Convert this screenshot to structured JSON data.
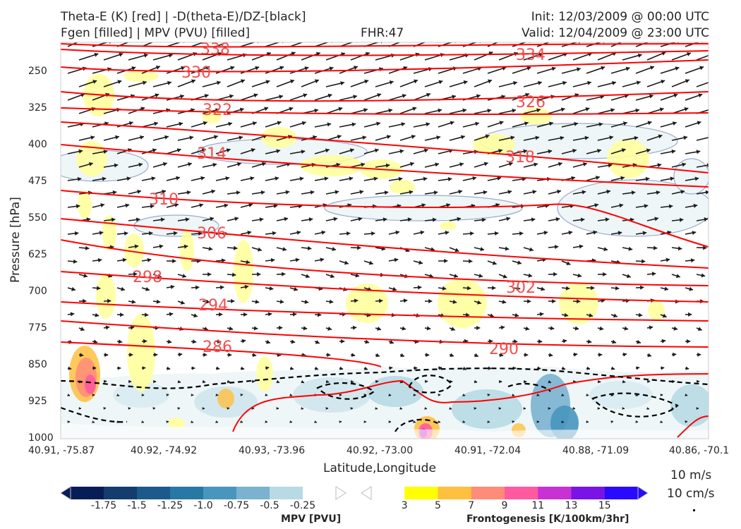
{
  "header": {
    "line1_left": "Theta-E (K) [red] | -D(theta-E)/DZ-[black]",
    "line2_left": "Fgen [filled] | MPV (PVU) [filled]",
    "fhr": "FHR:47",
    "init": "Init: 12/03/2009 @ 00:00 UTC",
    "valid": "Valid: 12/04/2009 @ 23:00 UTC"
  },
  "chart_data": {
    "type": "contour",
    "xlabel": "Latitude,Longitude",
    "ylabel": "Pressure [hPa]",
    "x_ticks": [
      "40.91, -75.87",
      "40.92, -74.92",
      "40.93, -73.96",
      "40.92, -73.00",
      "40.91, -72.04",
      "40.88, -71.09",
      "40.86, -70.1"
    ],
    "y_ticks": [
      250,
      325,
      400,
      475,
      550,
      625,
      700,
      775,
      850,
      925,
      1000
    ],
    "ylim": [
      1000,
      190
    ],
    "theta_e_labels": [
      338,
      334,
      330,
      326,
      322,
      318,
      314,
      310,
      306,
      302,
      298,
      294,
      290,
      286
    ],
    "colors": {
      "theta_e": "#ff0000",
      "label": "#f05050",
      "arrow": "#1a1a1a",
      "mpv_outline": "#9aaccc",
      "fgen_low": "#ffff99"
    },
    "mpv_colorbar": {
      "label": "MPV [PVU]",
      "ticks": [
        "-1.75",
        "-1.5",
        "-1.25",
        "-1.0",
        "-0.75",
        "-0.5",
        "-0.25"
      ],
      "colors": [
        "#081d58",
        "#143c6e",
        "#1d5a8c",
        "#2878a6",
        "#4896bd",
        "#7ab2cf",
        "#b7dae4",
        "#ffffff"
      ]
    },
    "fgen_colorbar": {
      "label": "Frontogenesis [K/100km/3hr]",
      "ticks": [
        "3",
        "5",
        "7",
        "9",
        "11",
        "13",
        "15"
      ],
      "colors": [
        "#ffffff",
        "#ffff00",
        "#ffc040",
        "#ff8c78",
        "#ff5aa0",
        "#c832d2",
        "#7a14e6",
        "#2a0aff"
      ]
    },
    "wind_key": {
      "line1": "10 m/s",
      "line2": "10 cm/s"
    }
  }
}
